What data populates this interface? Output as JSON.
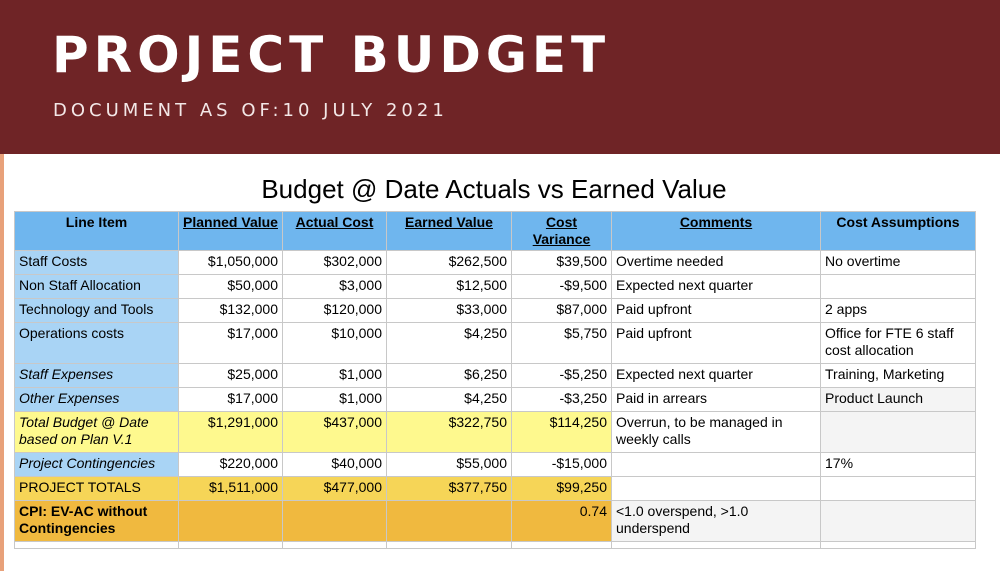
{
  "header": {
    "title": "PROJECT BUDGET",
    "subtitle": "DOCUMENT AS OF:10 JULY 2021"
  },
  "sheet": {
    "title": "Budget @ Date Actuals vs Earned Value",
    "columns": [
      "Line Item",
      "Planned Value",
      "Actual Cost",
      "Earned Value",
      "Cost Variance",
      "Comments",
      "Cost Assumptions"
    ],
    "rows": [
      {
        "item": "Staff Costs",
        "planned": "$1,050,000",
        "actual": "$302,000",
        "earned": "$262,500",
        "variance": "$39,500",
        "comments": "Overtime needed",
        "assumptions": "No overtime"
      },
      {
        "item": "Non Staff Allocation",
        "planned": "$50,000",
        "actual": "$3,000",
        "earned": "$12,500",
        "variance": "-$9,500",
        "comments": "Expected next quarter",
        "assumptions": ""
      },
      {
        "item": "Technology and Tools",
        "planned": "$132,000",
        "actual": "$120,000",
        "earned": "$33,000",
        "variance": "$87,000",
        "comments": "Paid upfront",
        "assumptions": "2 apps"
      },
      {
        "item": "Operations costs",
        "planned": "$17,000",
        "actual": "$10,000",
        "earned": "$4,250",
        "variance": "$5,750",
        "comments": "Paid upfront",
        "assumptions": "Office for FTE 6 staff cost allocation"
      },
      {
        "item": "Staff Expenses",
        "planned": "$25,000",
        "actual": "$1,000",
        "earned": "$6,250",
        "variance": "-$5,250",
        "comments": "Expected next quarter",
        "assumptions": "Training, Marketing"
      },
      {
        "item": "Other Expenses",
        "planned": "$17,000",
        "actual": "$1,000",
        "earned": "$4,250",
        "variance": "-$3,250",
        "comments": "Paid in arrears",
        "assumptions": "Product Launch"
      },
      {
        "item": "Total Budget @ Date based on Plan V.1",
        "planned": "$1,291,000",
        "actual": "$437,000",
        "earned": "$322,750",
        "variance": "$114,250",
        "comments": "Overrun, to be managed in weekly calls",
        "assumptions": ""
      },
      {
        "item": "Project Contingencies",
        "planned": "$220,000",
        "actual": "$40,000",
        "earned": "$55,000",
        "variance": "-$15,000",
        "comments": "",
        "assumptions": "17%"
      },
      {
        "item": "PROJECT TOTALS",
        "planned": "$1,511,000",
        "actual": "$477,000",
        "earned": "$377,750",
        "variance": "$99,250",
        "comments": "",
        "assumptions": ""
      },
      {
        "item": "CPI: EV-AC without Contingencies",
        "planned": "",
        "actual": "",
        "earned": "",
        "variance": "0.74",
        "comments": "<1.0 overspend, >1.0 underspend",
        "assumptions": ""
      }
    ]
  },
  "colors": {
    "banner": "#6f2426",
    "header_blue": "#6fb6ee",
    "line_item_blue": "#a9d4f5",
    "total_yellow": "#fef98e",
    "totals_gold": "#f6d557",
    "cpi_orange": "#f0b93f"
  }
}
